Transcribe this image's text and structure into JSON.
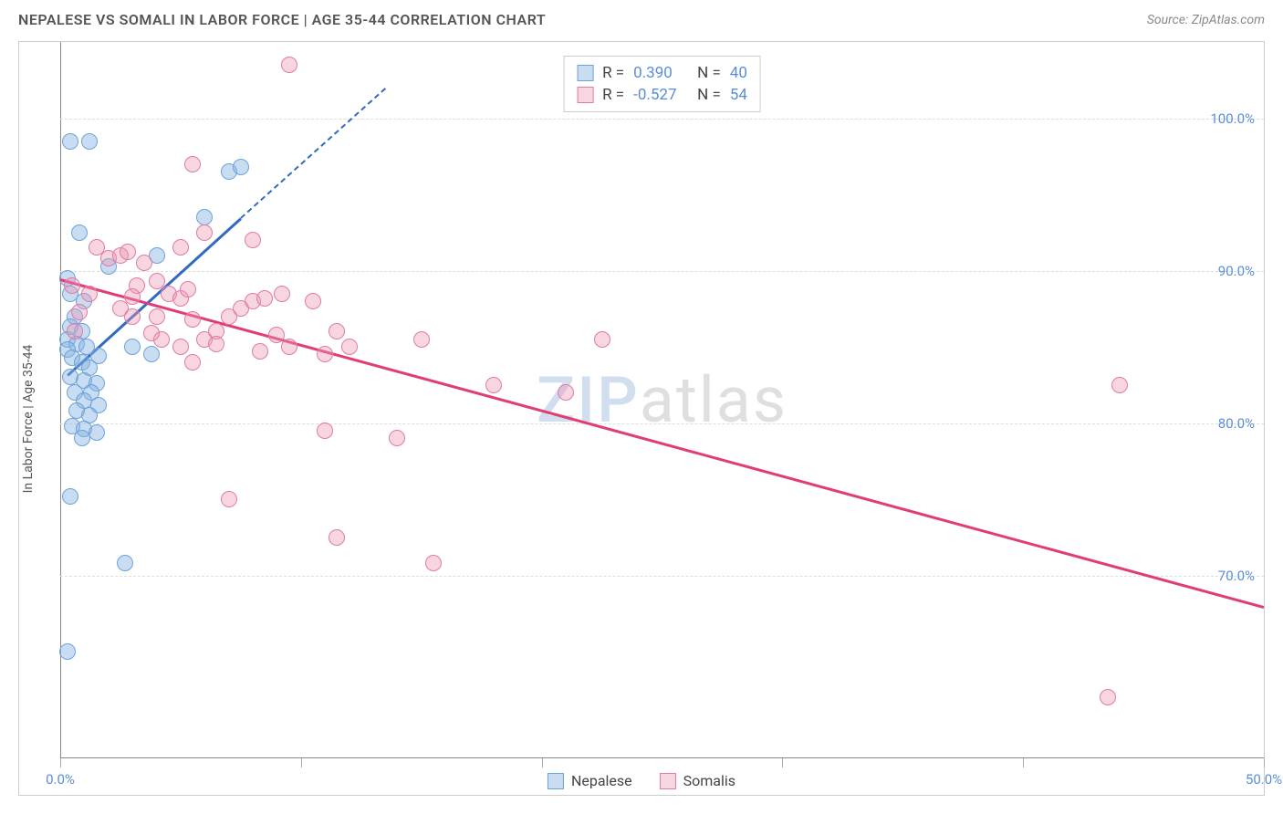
{
  "header": {
    "title": "NEPALESE VS SOMALI IN LABOR FORCE | AGE 35-44 CORRELATION CHART",
    "source": "Source: ZipAtlas.com"
  },
  "watermark": {
    "part1": "ZIP",
    "part2": "atlas"
  },
  "chart": {
    "type": "scatter",
    "xlim": [
      0,
      50
    ],
    "ylim": [
      58,
      105
    ],
    "x_ticks": [
      0,
      10,
      20,
      30,
      40,
      50
    ],
    "x_tick_labels": [
      "0.0%",
      "",
      "",
      "",
      "",
      "50.0%"
    ],
    "y_ticks": [
      70,
      80,
      90,
      100
    ],
    "y_tick_labels": [
      "70.0%",
      "80.0%",
      "90.0%",
      "100.0%"
    ],
    "y_axis_label": "In Labor Force | Age 35-44",
    "grid_color": "#dddddd",
    "background_color": "#ffffff",
    "axis_color": "#888888",
    "tick_label_color": "#5b8dd6",
    "series": [
      {
        "name": "Nepalese",
        "fill": "rgba(133,178,226,0.45)",
        "stroke": "#6da3d9",
        "trend_color": "#2f6cc0",
        "trend_start": [
          0.3,
          83.2
        ],
        "trend_end_solid": [
          7.5,
          93.5
        ],
        "trend_end_dashed": [
          13.5,
          102
        ],
        "points": [
          [
            0.4,
            98.5
          ],
          [
            1.2,
            98.5
          ],
          [
            0.8,
            92.5
          ],
          [
            0.3,
            89.5
          ],
          [
            0.4,
            88.5
          ],
          [
            1.0,
            88.0
          ],
          [
            0.6,
            87.0
          ],
          [
            0.4,
            86.3
          ],
          [
            0.9,
            86.0
          ],
          [
            0.3,
            85.5
          ],
          [
            0.7,
            85.2
          ],
          [
            1.1,
            85.0
          ],
          [
            0.3,
            84.8
          ],
          [
            0.5,
            84.3
          ],
          [
            0.9,
            84.0
          ],
          [
            1.6,
            84.4
          ],
          [
            1.2,
            83.6
          ],
          [
            0.4,
            83.0
          ],
          [
            1.0,
            82.8
          ],
          [
            1.5,
            82.6
          ],
          [
            0.6,
            82.0
          ],
          [
            1.3,
            82.0
          ],
          [
            1.0,
            81.5
          ],
          [
            1.6,
            81.2
          ],
          [
            0.7,
            80.8
          ],
          [
            1.2,
            80.5
          ],
          [
            0.5,
            79.8
          ],
          [
            1.0,
            79.6
          ],
          [
            1.5,
            79.4
          ],
          [
            0.9,
            79.0
          ],
          [
            2.0,
            90.3
          ],
          [
            3.0,
            85.0
          ],
          [
            3.8,
            84.5
          ],
          [
            4.0,
            91.0
          ],
          [
            7.0,
            96.5
          ],
          [
            7.5,
            96.8
          ],
          [
            2.7,
            70.8
          ],
          [
            0.4,
            75.2
          ],
          [
            0.3,
            65.0
          ],
          [
            6.0,
            93.5
          ]
        ]
      },
      {
        "name": "Somalis",
        "fill": "rgba(235,150,180,0.4)",
        "stroke": "#e27ba2",
        "trend_color": "#e13d75",
        "trend_start": [
          0,
          89.5
        ],
        "trend_end_solid": [
          50,
          68
        ],
        "points": [
          [
            9.5,
            103.5
          ],
          [
            5.5,
            97.0
          ],
          [
            1.5,
            91.5
          ],
          [
            2.0,
            90.8
          ],
          [
            2.5,
            91.0
          ],
          [
            2.8,
            91.2
          ],
          [
            3.5,
            90.5
          ],
          [
            3.2,
            89.0
          ],
          [
            4.0,
            89.3
          ],
          [
            4.5,
            88.5
          ],
          [
            5.0,
            88.2
          ],
          [
            5.3,
            88.8
          ],
          [
            2.5,
            87.5
          ],
          [
            3.0,
            87.0
          ],
          [
            4.0,
            87.0
          ],
          [
            5.5,
            86.8
          ],
          [
            5.0,
            91.5
          ],
          [
            6.0,
            92.5
          ],
          [
            4.2,
            85.5
          ],
          [
            5.0,
            85.0
          ],
          [
            6.0,
            85.5
          ],
          [
            6.5,
            86.0
          ],
          [
            7.0,
            87.0
          ],
          [
            7.5,
            87.5
          ],
          [
            8.0,
            88.0
          ],
          [
            8.0,
            92.0
          ],
          [
            8.5,
            88.2
          ],
          [
            9.2,
            88.5
          ],
          [
            9.0,
            85.8
          ],
          [
            9.5,
            85.0
          ],
          [
            10.5,
            88.0
          ],
          [
            11.5,
            86.0
          ],
          [
            11.0,
            84.5
          ],
          [
            12.0,
            85.0
          ],
          [
            6.5,
            85.2
          ],
          [
            3.0,
            88.3
          ],
          [
            5.5,
            84.0
          ],
          [
            1.2,
            88.5
          ],
          [
            0.8,
            87.3
          ],
          [
            0.5,
            89.0
          ],
          [
            8.3,
            84.7
          ],
          [
            3.8,
            85.9
          ],
          [
            7.0,
            75.0
          ],
          [
            11.0,
            79.5
          ],
          [
            14.0,
            79.0
          ],
          [
            11.5,
            72.5
          ],
          [
            15.0,
            85.5
          ],
          [
            18.0,
            82.5
          ],
          [
            21.0,
            82.0
          ],
          [
            22.5,
            85.5
          ],
          [
            44.0,
            82.5
          ],
          [
            43.5,
            62.0
          ],
          [
            15.5,
            70.8
          ],
          [
            0.6,
            86.0
          ]
        ]
      }
    ]
  },
  "stats": {
    "rows": [
      {
        "swatch_fill": "rgba(133,178,226,0.45)",
        "swatch_stroke": "#6da3d9",
        "r_label": "R =",
        "r": "0.390",
        "n_label": "N =",
        "n": "40"
      },
      {
        "swatch_fill": "rgba(235,150,180,0.4)",
        "swatch_stroke": "#e27ba2",
        "r_label": "R =",
        "r": "-0.527",
        "n_label": "N =",
        "n": "54"
      }
    ]
  },
  "legend": {
    "items": [
      {
        "swatch_fill": "rgba(133,178,226,0.45)",
        "swatch_stroke": "#6da3d9",
        "label": "Nepalese"
      },
      {
        "swatch_fill": "rgba(235,150,180,0.4)",
        "swatch_stroke": "#e27ba2",
        "label": "Somalis"
      }
    ]
  }
}
